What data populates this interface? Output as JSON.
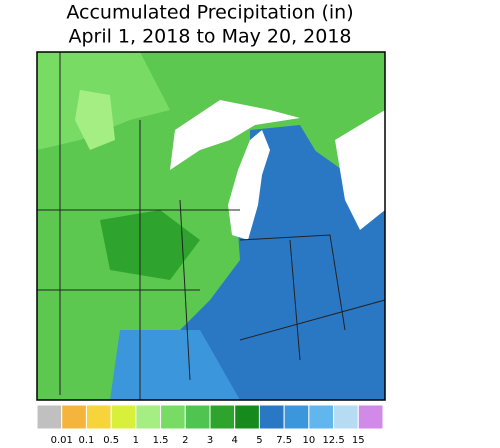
{
  "title": [
    "Accumulated Precipitation (in)",
    "April 1, 2018 to May 20, 2018"
  ],
  "legend": {
    "colors": [
      "#c0c0c0",
      "#f5b43c",
      "#f7d43a",
      "#d8f03a",
      "#a4ee84",
      "#78dc64",
      "#50c450",
      "#2ea42e",
      "#168a1c",
      "#2a78c4",
      "#3c96dc",
      "#62b6ee",
      "#b6dcf4",
      "#d28ae8"
    ],
    "labels": [
      "0.01",
      "0.1",
      "0.5",
      "1",
      "1.5",
      "2",
      "3",
      "4",
      "5",
      "7.5",
      "10",
      "12.5",
      "15"
    ]
  }
}
